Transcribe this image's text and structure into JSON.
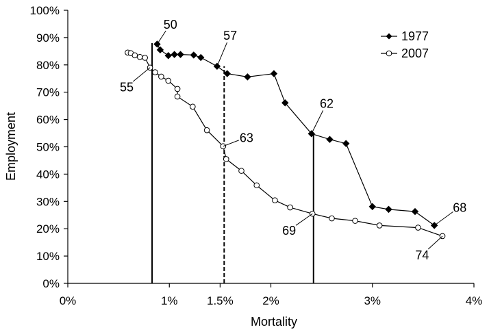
{
  "chart_data": {
    "type": "line",
    "xlabel": "Mortality",
    "ylabel": "Employment",
    "xlim": [
      0,
      0.04
    ],
    "ylim": [
      0,
      1.0
    ],
    "x_ticks": [
      {
        "value": 0,
        "label": "0%"
      },
      {
        "value": 0.01,
        "label": "1%"
      },
      {
        "value": 0.015,
        "label": "1.5%"
      },
      {
        "value": 0.02,
        "label": "2%"
      },
      {
        "value": 0.03,
        "label": "3%"
      },
      {
        "value": 0.04,
        "label": "4%"
      }
    ],
    "y_ticks": [
      {
        "value": 0,
        "label": "0%"
      },
      {
        "value": 0.1,
        "label": "10%"
      },
      {
        "value": 0.2,
        "label": "20%"
      },
      {
        "value": 0.3,
        "label": "30%"
      },
      {
        "value": 0.4,
        "label": "40%"
      },
      {
        "value": 0.5,
        "label": "50%"
      },
      {
        "value": 0.6,
        "label": "60%"
      },
      {
        "value": 0.7,
        "label": "70%"
      },
      {
        "value": 0.8,
        "label": "80%"
      },
      {
        "value": 0.9,
        "label": "90%"
      },
      {
        "value": 1.0,
        "label": "100%"
      }
    ],
    "grid": false,
    "legend_position": "top-right",
    "series": [
      {
        "name": "1977",
        "marker": "diamond-filled",
        "color": "#000000",
        "points": [
          [
            0.0088,
            0.876
          ],
          [
            0.0091,
            0.855
          ],
          [
            0.0099,
            0.834
          ],
          [
            0.0105,
            0.838
          ],
          [
            0.0111,
            0.838
          ],
          [
            0.0124,
            0.836
          ],
          [
            0.0131,
            0.827
          ],
          [
            0.0147,
            0.795
          ],
          [
            0.0157,
            0.768
          ],
          [
            0.0177,
            0.756
          ],
          [
            0.0203,
            0.768
          ],
          [
            0.0214,
            0.661
          ],
          [
            0.024,
            0.548
          ],
          [
            0.0258,
            0.527
          ],
          [
            0.0274,
            0.512
          ],
          [
            0.03,
            0.281
          ],
          [
            0.0316,
            0.271
          ],
          [
            0.0342,
            0.263
          ],
          [
            0.0361,
            0.212
          ]
        ]
      },
      {
        "name": "2007",
        "marker": "circle-open",
        "color": "#000000",
        "points": [
          [
            0.0059,
            0.845
          ],
          [
            0.0062,
            0.843
          ],
          [
            0.0066,
            0.835
          ],
          [
            0.0071,
            0.829
          ],
          [
            0.0076,
            0.826
          ],
          [
            0.0081,
            0.79
          ],
          [
            0.0086,
            0.773
          ],
          [
            0.0092,
            0.757
          ],
          [
            0.0099,
            0.742
          ],
          [
            0.0108,
            0.712
          ],
          [
            0.0108,
            0.684
          ],
          [
            0.0123,
            0.647
          ],
          [
            0.0137,
            0.561
          ],
          [
            0.0153,
            0.502
          ],
          [
            0.0156,
            0.455
          ],
          [
            0.0171,
            0.412
          ],
          [
            0.0186,
            0.359
          ],
          [
            0.0204,
            0.304
          ],
          [
            0.0219,
            0.278
          ],
          [
            0.0241,
            0.255
          ],
          [
            0.026,
            0.238
          ],
          [
            0.0283,
            0.229
          ],
          [
            0.0307,
            0.212
          ],
          [
            0.0345,
            0.204
          ],
          [
            0.0369,
            0.173
          ]
        ]
      }
    ],
    "reference_lines": [
      {
        "x": 0.0083,
        "style": "solid"
      },
      {
        "x": 0.0154,
        "style": "dashed"
      },
      {
        "x": 0.0242,
        "style": "solid"
      }
    ],
    "annotations": [
      {
        "text": "50",
        "at": [
          0.0088,
          0.876
        ],
        "label_pos": [
          0.0101,
          0.95
        ]
      },
      {
        "text": "57",
        "at": [
          0.0147,
          0.795
        ],
        "label_pos": [
          0.016,
          0.91
        ]
      },
      {
        "text": "62",
        "at": [
          0.024,
          0.548
        ],
        "label_pos": [
          0.0255,
          0.66
        ]
      },
      {
        "text": "68",
        "at": [
          0.0361,
          0.212
        ],
        "label_pos": [
          0.0386,
          0.28
        ]
      },
      {
        "text": "55",
        "at": [
          0.0081,
          0.79
        ],
        "label_pos": [
          0.0058,
          0.72
        ]
      },
      {
        "text": "63",
        "at": [
          0.0153,
          0.502
        ],
        "label_pos": [
          0.0176,
          0.535
        ]
      },
      {
        "text": "69",
        "at": [
          0.0241,
          0.255
        ],
        "label_pos": [
          0.0218,
          0.195
        ]
      },
      {
        "text": "74",
        "at": [
          0.0369,
          0.173
        ],
        "label_pos": [
          0.0349,
          0.105
        ]
      }
    ]
  }
}
